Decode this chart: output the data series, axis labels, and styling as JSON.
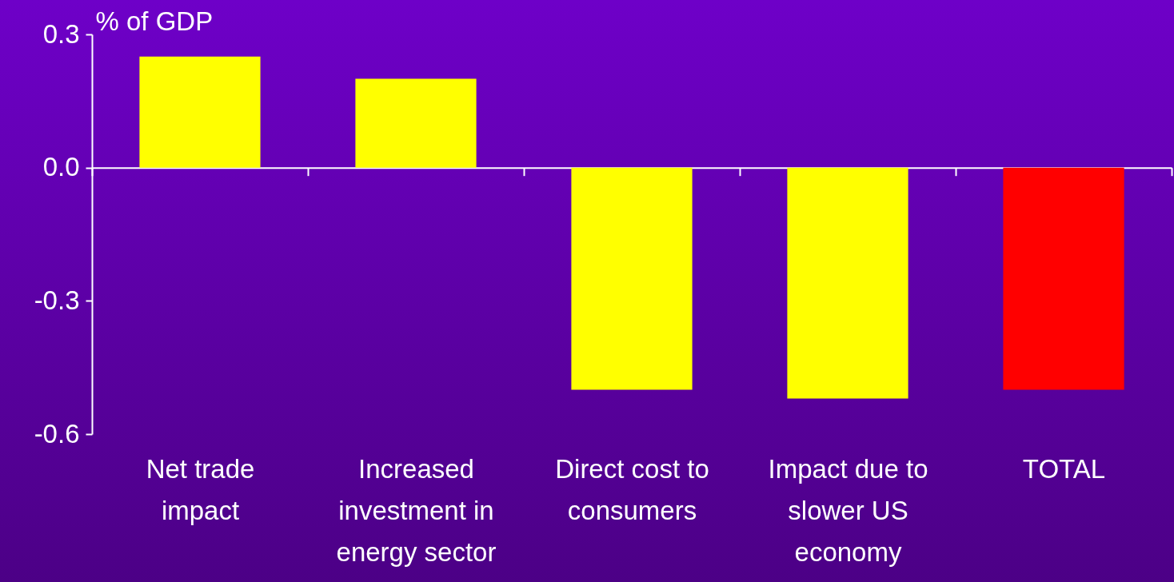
{
  "chart_data": {
    "type": "bar",
    "ylabel": "% of GDP",
    "categories": [
      "Net trade impact",
      "Increased investment in energy sector",
      "Direct cost to consumers",
      "Impact due to slower US economy",
      "TOTAL"
    ],
    "values": [
      0.25,
      0.2,
      -0.5,
      -0.52,
      -0.5
    ],
    "colors": [
      "#ffff00",
      "#ffff00",
      "#ffff00",
      "#ffff00",
      "#ff0000"
    ],
    "ylim": [
      -0.6,
      0.3
    ],
    "yticks": [
      {
        "value": 0.3,
        "label": "0.3"
      },
      {
        "value": 0,
        "label": "0.0"
      },
      {
        "value": -0.3,
        "label": "-0.3"
      },
      {
        "value": -0.6,
        "label": "-0.6"
      }
    ]
  }
}
